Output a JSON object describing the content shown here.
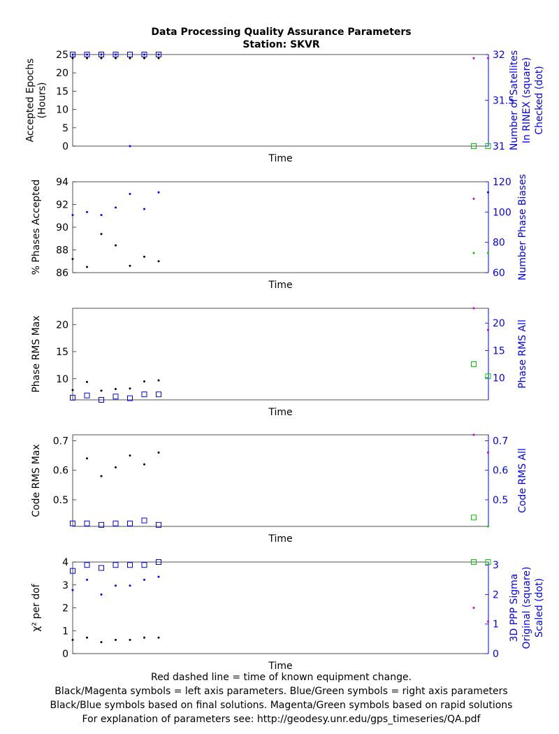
{
  "title": "Data Processing Quality Assurance Parameters",
  "subtitle": "Station: SKVR",
  "footer": [
    "Red dashed line = time of known equipment change.",
    "Black/Magenta symbols = left axis parameters. Blue/Green symbols = right axis parameters",
    "Black/Blue symbols based on final solutions.  Magenta/Green symbols based on rapid solutions",
    "For explanation of parameters see: http://geodesy.unr.edu/gps_timeseries/QA.pdf"
  ],
  "colors": {
    "final_left": "#000000",
    "rapid_left": "#cc00cc",
    "final_right": "#0000ff",
    "rapid_right": "#00cc00",
    "right_axis": "#0000ff"
  },
  "chart_data": [
    {
      "type": "scatter",
      "xlabel": "Time",
      "ylabel_left": [
        "Accepted Epochs",
        "(Hours)"
      ],
      "ylabel_right": [
        "Number of Satellites",
        "In RINEX (square)",
        "Checked (dot)"
      ],
      "ylim_left": [
        0,
        25
      ],
      "ylim_right": [
        31,
        32
      ],
      "yticks_left": [
        0,
        5,
        10,
        15,
        20,
        25
      ],
      "yticks_right": [
        31,
        31.5,
        32
      ],
      "series": [
        {
          "axis": "left",
          "role": "final_left",
          "marker": "dot",
          "x": [
            0,
            1,
            2,
            3,
            4,
            5,
            6
          ],
          "values": [
            24,
            24,
            24,
            24,
            24,
            24,
            24
          ]
        },
        {
          "axis": "left",
          "role": "rapid_left",
          "marker": "dot",
          "x": [
            28,
            29
          ],
          "values": [
            24,
            24
          ]
        },
        {
          "axis": "right",
          "role": "final_right",
          "marker": "square",
          "x": [
            0,
            1,
            2,
            3,
            4,
            5,
            6
          ],
          "values": [
            32,
            32,
            32,
            32,
            32,
            32,
            32
          ]
        },
        {
          "axis": "right",
          "role": "final_right",
          "marker": "dot",
          "x": [
            0,
            1,
            2,
            3,
            4,
            5,
            6
          ],
          "values": [
            32,
            32,
            32,
            32,
            31,
            32,
            32
          ]
        },
        {
          "axis": "right",
          "role": "rapid_right",
          "marker": "square",
          "x": [
            28,
            29
          ],
          "values": [
            31,
            31
          ]
        }
      ]
    },
    {
      "type": "scatter",
      "xlabel": "Time",
      "ylabel_left": [
        "% Phases Accepted"
      ],
      "ylabel_right": [
        "Number Phase Biases"
      ],
      "ylim_left": [
        86,
        94
      ],
      "ylim_right": [
        60,
        120
      ],
      "yticks_left": [
        86,
        88,
        90,
        92,
        94
      ],
      "yticks_right": [
        60,
        80,
        100,
        120
      ],
      "series": [
        {
          "axis": "left",
          "role": "final_left",
          "marker": "dot",
          "x": [
            0,
            1,
            2,
            3,
            4,
            5,
            6
          ],
          "values": [
            87.2,
            86.5,
            89.4,
            88.4,
            86.6,
            87.4,
            87.0
          ]
        },
        {
          "axis": "left",
          "role": "rapid_left",
          "marker": "dot",
          "x": [
            28
          ],
          "values": [
            92.5
          ]
        },
        {
          "axis": "right",
          "role": "final_right",
          "marker": "dot",
          "x": [
            0,
            1,
            2,
            3,
            4,
            5,
            6
          ],
          "values": [
            98,
            100,
            98,
            103,
            112,
            102,
            113
          ]
        },
        {
          "axis": "right",
          "role": "rapid_right",
          "marker": "dot",
          "x": [
            28,
            29
          ],
          "values": [
            73,
            73
          ]
        },
        {
          "axis": "right",
          "role": "final_right",
          "marker": "dot",
          "x": [
            29
          ],
          "values": [
            113
          ]
        }
      ]
    },
    {
      "type": "scatter",
      "xlabel": "Time",
      "ylabel_left": [
        "Phase RMS Max"
      ],
      "ylabel_right": [
        "Phase RMS All"
      ],
      "ylim_left": [
        6.1,
        23.0
      ],
      "ylim_right": [
        6.0,
        22.7
      ],
      "yticks_left": [
        10,
        15,
        20
      ],
      "yticks_right": [
        10,
        15,
        20
      ],
      "series": [
        {
          "axis": "left",
          "role": "final_left",
          "marker": "dot",
          "x": [
            0,
            1,
            2,
            3,
            4,
            5,
            6
          ],
          "values": [
            7.9,
            9.4,
            7.8,
            8.1,
            8.2,
            9.5,
            9.7
          ]
        },
        {
          "axis": "left",
          "role": "rapid_left",
          "marker": "dot",
          "x": [
            28,
            29
          ],
          "values": [
            23.0,
            19.0
          ]
        },
        {
          "axis": "right",
          "role": "final_right",
          "marker": "square",
          "x": [
            0,
            1,
            2,
            3,
            4,
            5,
            6
          ],
          "values": [
            6.4,
            6.8,
            6.0,
            6.6,
            6.3,
            7.0,
            7.0
          ]
        },
        {
          "axis": "right",
          "role": "rapid_right",
          "marker": "square",
          "x": [
            28,
            29
          ],
          "values": [
            12.5,
            10.3
          ]
        }
      ]
    },
    {
      "type": "scatter",
      "xlabel": "Time",
      "ylabel_left": [
        "Code RMS Max"
      ],
      "ylabel_right": [
        "Code RMS All"
      ],
      "ylim_left": [
        0.41,
        0.72
      ],
      "ylim_right": [
        0.41,
        0.72
      ],
      "yticks_left": [
        0.5,
        0.6,
        0.7
      ],
      "yticks_right": [
        0.5,
        0.6,
        0.7
      ],
      "series": [
        {
          "axis": "left",
          "role": "final_left",
          "marker": "dot",
          "x": [
            1,
            2,
            3,
            4,
            5,
            6
          ],
          "values": [
            0.64,
            0.58,
            0.61,
            0.65,
            0.62,
            0.66
          ]
        },
        {
          "axis": "left",
          "role": "rapid_left",
          "marker": "dot",
          "x": [
            28,
            29
          ],
          "values": [
            0.72,
            0.66
          ]
        },
        {
          "axis": "right",
          "role": "final_right",
          "marker": "square",
          "x": [
            0,
            1,
            2,
            3,
            4,
            5,
            6
          ],
          "values": [
            0.42,
            0.42,
            0.415,
            0.42,
            0.42,
            0.43,
            0.415
          ]
        },
        {
          "axis": "right",
          "role": "rapid_right",
          "marker": "square",
          "x": [
            28
          ],
          "values": [
            0.44
          ]
        },
        {
          "axis": "right",
          "role": "rapid_right",
          "marker": "dot",
          "x": [
            29
          ],
          "values": [
            0.41
          ]
        }
      ]
    },
    {
      "type": "scatter",
      "xlabel": "Time",
      "ylabel_left": [
        "χ² per dof"
      ],
      "ylabel_right": [
        "3D PPP Sigma",
        "Original (square)",
        "Scaled (dot)"
      ],
      "ylim_left": [
        0,
        4
      ],
      "ylim_right": [
        0,
        3.1
      ],
      "yticks_left": [
        0,
        1,
        2,
        3,
        4
      ],
      "yticks_right": [
        0,
        1,
        2,
        3
      ],
      "series": [
        {
          "axis": "left",
          "role": "final_left",
          "marker": "dot",
          "x": [
            0,
            1,
            2,
            3,
            4,
            5,
            6
          ],
          "values": [
            0.6,
            0.7,
            0.5,
            0.6,
            0.6,
            0.7,
            0.7
          ]
        },
        {
          "axis": "left",
          "role": "rapid_left",
          "marker": "dot",
          "x": [
            28,
            29
          ],
          "values": [
            2.0,
            1.4
          ]
        },
        {
          "axis": "right",
          "role": "final_right",
          "marker": "square",
          "x": [
            0,
            1,
            2,
            3,
            4,
            5,
            6
          ],
          "values": [
            2.8,
            3.0,
            2.9,
            3.0,
            3.0,
            3.0,
            3.1
          ]
        },
        {
          "axis": "right",
          "role": "final_right",
          "marker": "dot",
          "x": [
            0,
            1,
            2,
            3,
            4,
            5,
            6
          ],
          "values": [
            2.15,
            2.5,
            2.0,
            2.3,
            2.3,
            2.5,
            2.6
          ]
        },
        {
          "axis": "right",
          "role": "rapid_right",
          "marker": "square",
          "x": [
            28,
            29
          ],
          "values": [
            3.1,
            3.1
          ]
        }
      ]
    }
  ]
}
